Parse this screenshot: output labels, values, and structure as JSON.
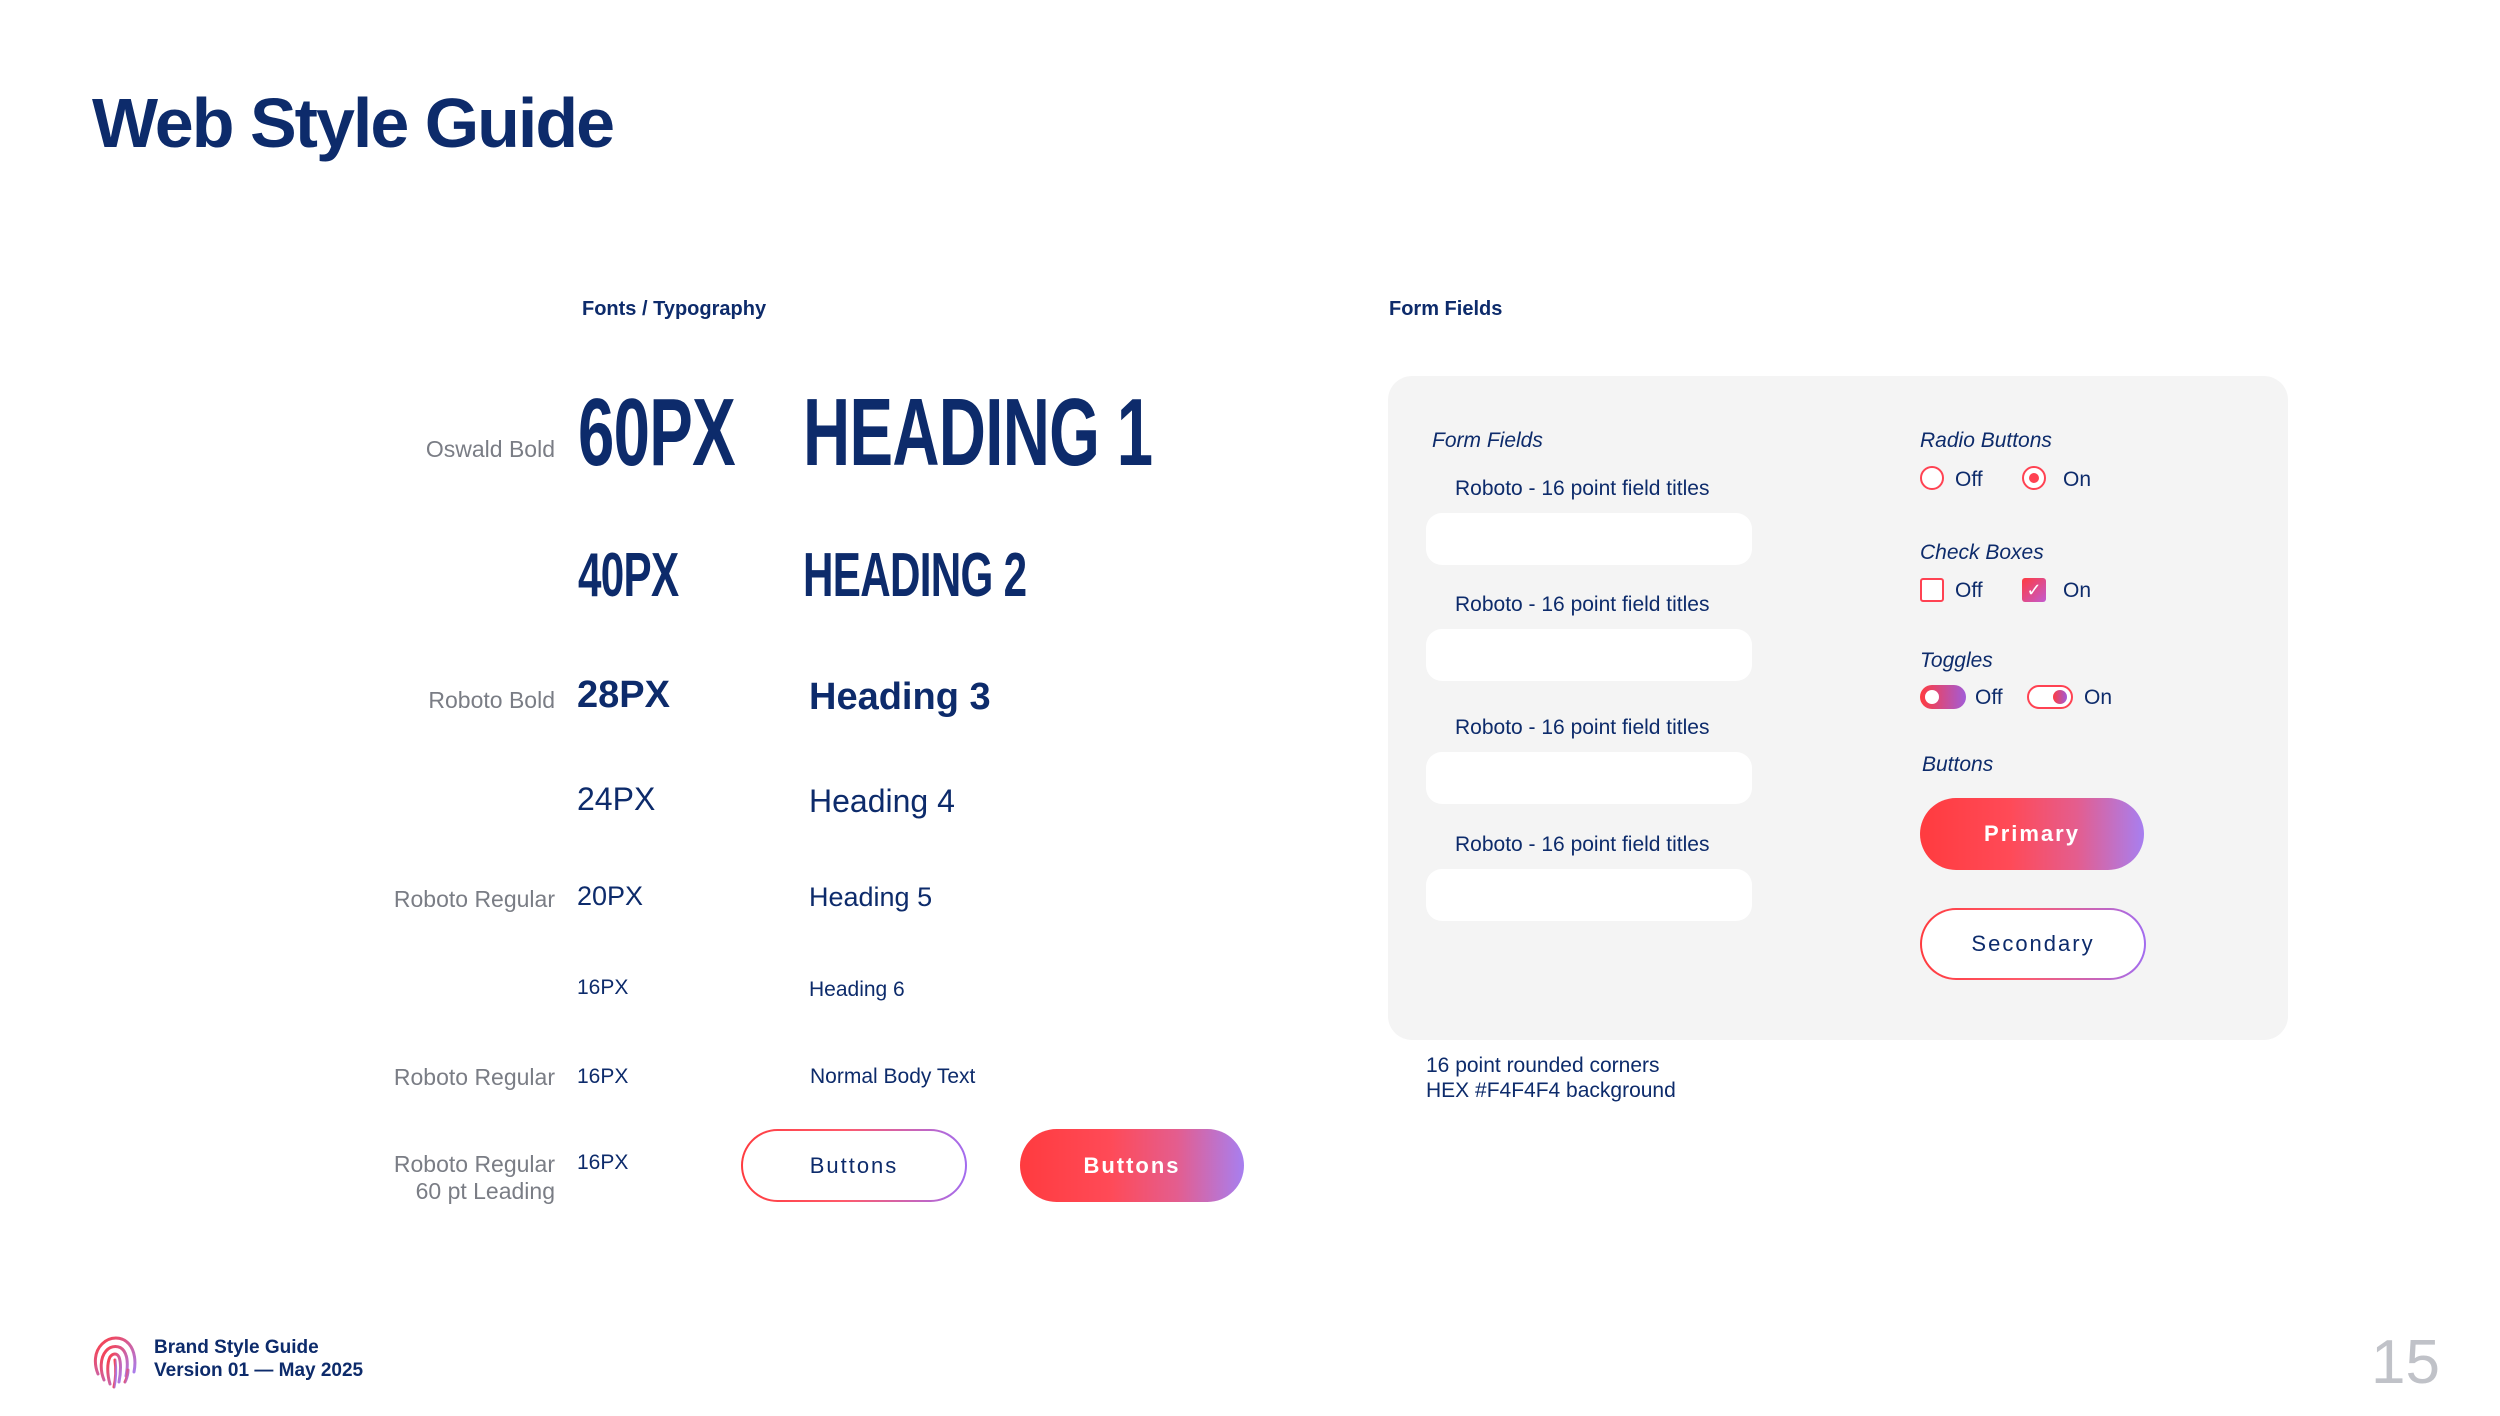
{
  "title": "Web Style Guide",
  "sections": {
    "typography_label": "Fonts / Typography",
    "form_fields_label": "Form Fields"
  },
  "typography": {
    "labels": {
      "oswald_bold": "Oswald Bold",
      "roboto_bold": "Roboto Bold",
      "roboto_regular_1": "Roboto Regular",
      "roboto_regular_2": "Roboto Regular",
      "roboto_regular_3": "Roboto Regular",
      "leading": "60 pt Leading"
    },
    "rows": [
      {
        "size": "60PX",
        "sample": "HEADING 1"
      },
      {
        "size": "40PX",
        "sample": "HEADING 2"
      },
      {
        "size": "28PX",
        "sample": "Heading 3"
      },
      {
        "size": "24PX",
        "sample": "Heading 4"
      },
      {
        "size": "20PX",
        "sample": "Heading 5"
      },
      {
        "size": "16PX",
        "sample": "Heading 6"
      },
      {
        "size": "16PX",
        "sample": "Normal Body Text"
      },
      {
        "size": "16PX",
        "sample": ""
      }
    ],
    "buttons": {
      "outline_label": "Buttons",
      "filled_label": "Buttons"
    }
  },
  "form": {
    "fields_heading": "Form Fields",
    "field_titles": [
      "Roboto - 16 point field titles",
      "Roboto - 16 point field titles",
      "Roboto - 16 point field titles",
      "Roboto - 16 point field titles"
    ],
    "radio": {
      "heading": "Radio Buttons",
      "off": "Off",
      "on": "On"
    },
    "checkbox": {
      "heading": "Check Boxes",
      "off": "Off",
      "on": "On"
    },
    "toggle": {
      "heading": "Toggles",
      "off": "Off",
      "on": "On"
    },
    "buttons": {
      "heading": "Buttons",
      "primary": "Primary",
      "secondary": "Secondary"
    },
    "notes": [
      "16 point rounded corners",
      "HEX #F4F4F4 background"
    ]
  },
  "footer": {
    "line1": "Brand Style Guide",
    "line2": "Version 01 — May 2025",
    "page_number": "15"
  },
  "colors": {
    "navy": "#0d2b6b",
    "accent_red": "#ff3b3f",
    "accent_purple": "#a77ff0",
    "panel_bg": "#F4F4F4"
  }
}
